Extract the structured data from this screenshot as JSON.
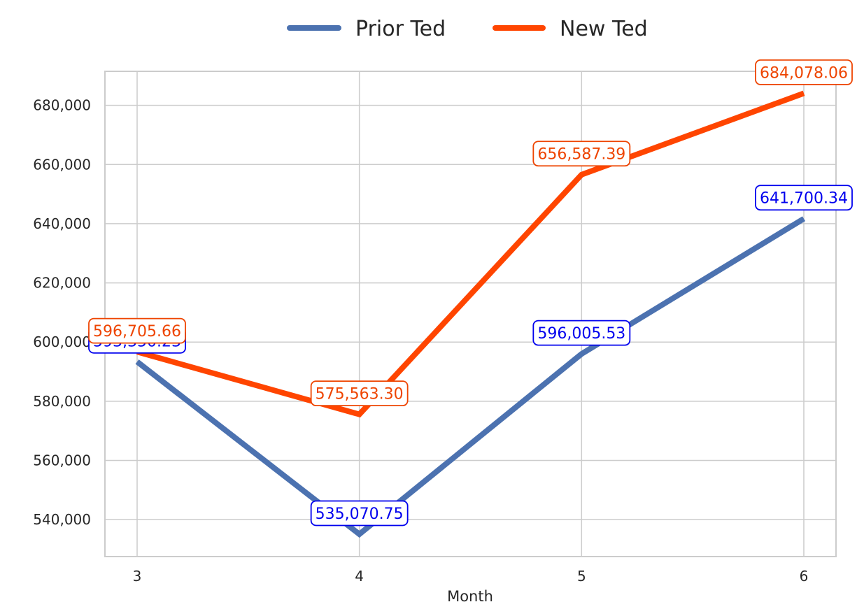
{
  "chart_data": {
    "type": "line",
    "xlabel": "Month",
    "ylabel": "",
    "x": [
      3,
      4,
      5,
      6
    ],
    "ylim": [
      527500,
      691500
    ],
    "yticks": [
      540000,
      560000,
      580000,
      600000,
      620000,
      640000,
      660000,
      680000
    ],
    "ytick_labels": [
      "540,000",
      "560,000",
      "580,000",
      "600,000",
      "620,000",
      "640,000",
      "660,000",
      "680,000"
    ],
    "xtick_labels": [
      "3",
      "4",
      "5",
      "6"
    ],
    "grid": true,
    "legend_position": "top-center",
    "series": [
      {
        "name": "Prior Ted",
        "color": "#4c72b0",
        "label_color": "#0000ee",
        "values": [
          593350.23,
          535070.75,
          596005.53,
          641700.34
        ],
        "labels": [
          "593,350.23",
          "535,070.75",
          "596,005.53",
          "641,700.34"
        ]
      },
      {
        "name": "New Ted",
        "color": "#ff4500",
        "label_color": "#ee4400",
        "values": [
          596705.66,
          575563.3,
          656587.39,
          684078.06
        ],
        "labels": [
          "596,705.66",
          "575,563.30",
          "656,587.39",
          "684,078.06"
        ]
      }
    ]
  }
}
